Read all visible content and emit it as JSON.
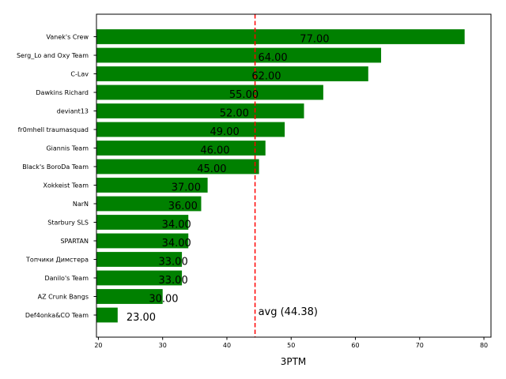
{
  "chart_data": {
    "type": "bar",
    "orientation": "horizontal",
    "title": "",
    "xlabel": "3PTM",
    "ylabel": "",
    "xlim": [
      19.7,
      81.1
    ],
    "x_ticks": [
      20,
      30,
      40,
      50,
      60,
      70,
      80
    ],
    "categories": [
      "Vanek's Crew",
      "Serg_Lo and Oxy Team",
      "C-Lav",
      "Dawkins Richard",
      "deviant13",
      "fr0mhell traumasquad",
      "Giannis Team",
      "Black's BoroDa Team",
      "Xokkeist Team",
      "NarN",
      "Starbury SLS",
      "SPARTAN",
      "Топчики Димстера",
      "Danilo's Team",
      "AZ Crunk Bangs",
      "Def4onka&CO Team"
    ],
    "values": [
      77,
      64,
      62,
      55,
      52,
      49,
      46,
      45,
      37,
      36,
      34,
      34,
      33,
      33,
      30,
      23
    ],
    "value_labels": [
      "77.00",
      "64.00",
      "62.00",
      "55.00",
      "52.00",
      "49.00",
      "46.00",
      "45.00",
      "37.00",
      "36.00",
      "34.00",
      "34.00",
      "33.00",
      "33.00",
      "30.00",
      "23.00"
    ],
    "bar_color": "#008000",
    "average": {
      "value": 44.38,
      "label": "avg (44.38)",
      "color": "#ff0000",
      "style": "dashed"
    },
    "grid": false,
    "legend": "none"
  }
}
